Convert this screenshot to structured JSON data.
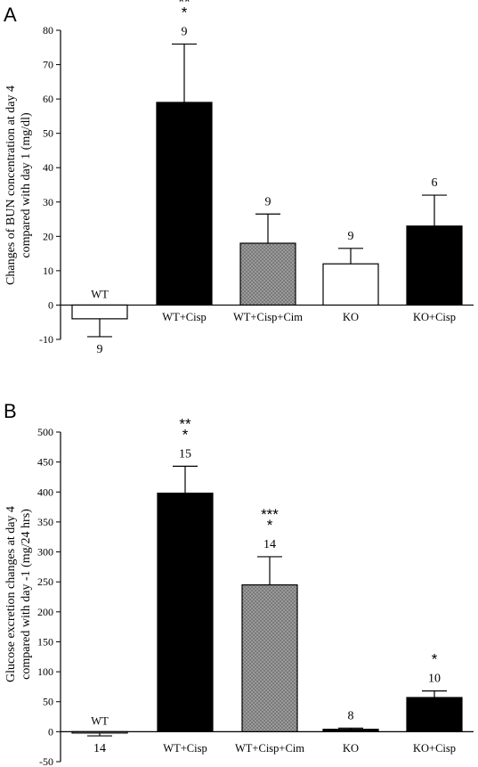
{
  "chart_data": [
    {
      "type": "bar",
      "panel": "A",
      "ylabel_lines": [
        "Changes of BUN concentration at day 4",
        "compared with day 1 (mg/dl)"
      ],
      "ylim": [
        -10,
        80
      ],
      "yticks": [
        -10,
        0,
        10,
        20,
        30,
        40,
        50,
        60,
        70,
        80
      ],
      "categories": [
        "WT",
        "WT+Cisp",
        "WT+Cisp+Cim",
        "KO",
        "KO+Cisp"
      ],
      "values": [
        -4,
        59,
        18,
        12,
        23
      ],
      "errors": [
        5.2,
        17,
        8.5,
        4.5,
        9
      ],
      "n": [
        "9",
        "9",
        "9",
        "9",
        "6"
      ],
      "significance": [
        [],
        [
          "**",
          "*"
        ],
        [],
        [],
        []
      ],
      "fill_colors": [
        "#ffffff",
        "#000000",
        "#8a8a8a",
        "#ffffff",
        "#000000"
      ],
      "hatched": [
        false,
        false,
        true,
        false,
        false
      ]
    },
    {
      "type": "bar",
      "panel": "B",
      "ylabel_lines": [
        "Glucose excretion changes at day 4",
        "compared with day -1 (mg/24 hrs)"
      ],
      "ylim": [
        -50,
        500
      ],
      "yticks": [
        -50,
        0,
        50,
        100,
        150,
        200,
        250,
        300,
        350,
        400,
        450,
        500
      ],
      "categories": [
        "WT",
        "WT+Cisp",
        "WT+Cisp+Cim",
        "KO",
        "KO+Cisp"
      ],
      "category_labels_display": [
        "WT",
        "WT+Cisp",
        "WT+Cisp+Cim",
        "KO",
        "KO+Cisp"
      ],
      "values": [
        -2,
        398,
        245,
        4,
        57
      ],
      "errors": [
        5,
        45,
        47,
        2,
        11
      ],
      "n": [
        "14",
        "15",
        "14",
        "8",
        "10"
      ],
      "significance": [
        [],
        [
          "**",
          "*"
        ],
        [
          "***",
          "*"
        ],
        [],
        [
          "*"
        ]
      ],
      "fill_colors": [
        "#ffffff",
        "#000000",
        "#8a8a8a",
        "#000000",
        "#000000"
      ],
      "hatched": [
        false,
        false,
        true,
        false,
        false
      ]
    }
  ]
}
